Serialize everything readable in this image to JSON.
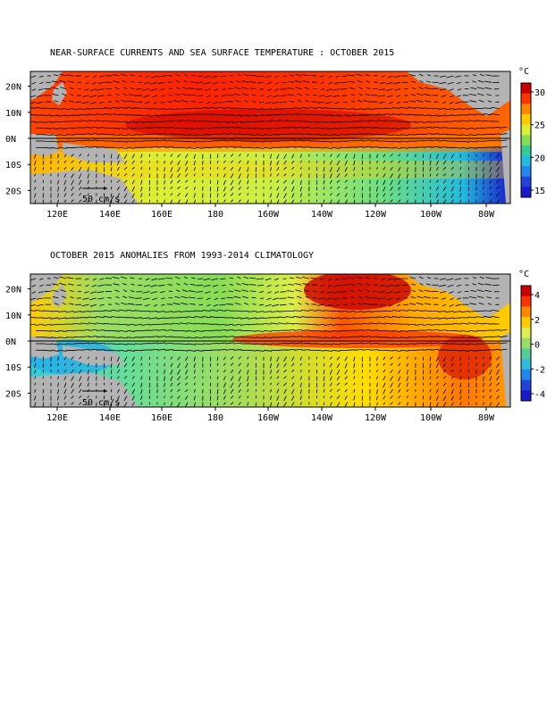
{
  "panels": [
    {
      "title": "NEAR-SURFACE CURRENTS AND SEA SURFACE TEMPERATURE : OCTOBER 2015",
      "unit": "°C",
      "colorbar_ticks": [
        "30",
        "25",
        "20",
        "15"
      ],
      "colorbar_colors": [
        "#cc0000",
        "#ff3300",
        "#ff8800",
        "#ffcc00",
        "#ddee33",
        "#88dd55",
        "#33cc99",
        "#22bbdd",
        "#2288ee",
        "#2244dd",
        "#1a1acc"
      ],
      "scale_label": "50 cm/s",
      "x_ticks": [
        "120E",
        "140E",
        "160E",
        "180",
        "160W",
        "140W",
        "120W",
        "100W",
        "80W"
      ],
      "y_ticks": [
        "20N",
        "10N",
        "0N",
        "10S",
        "20S"
      ]
    },
    {
      "title": "OCTOBER 2015 ANOMALIES FROM 1993-2014 CLIMATOLOGY",
      "unit": "°C",
      "colorbar_ticks": [
        "4",
        "2",
        "0",
        "-2",
        "-4"
      ],
      "colorbar_colors": [
        "#cc0000",
        "#ff3300",
        "#ff8800",
        "#ffcc00",
        "#ddee55",
        "#99dd66",
        "#55cc99",
        "#33bbdd",
        "#2288ee",
        "#2244dd",
        "#1a1acc"
      ],
      "scale_label": "50 cm/s",
      "x_ticks": [
        "120E",
        "140E",
        "160E",
        "180",
        "160W",
        "140W",
        "120W",
        "100W",
        "80W"
      ],
      "y_ticks": [
        "20N",
        "10N",
        "0N",
        "10S",
        "20S"
      ]
    }
  ]
}
